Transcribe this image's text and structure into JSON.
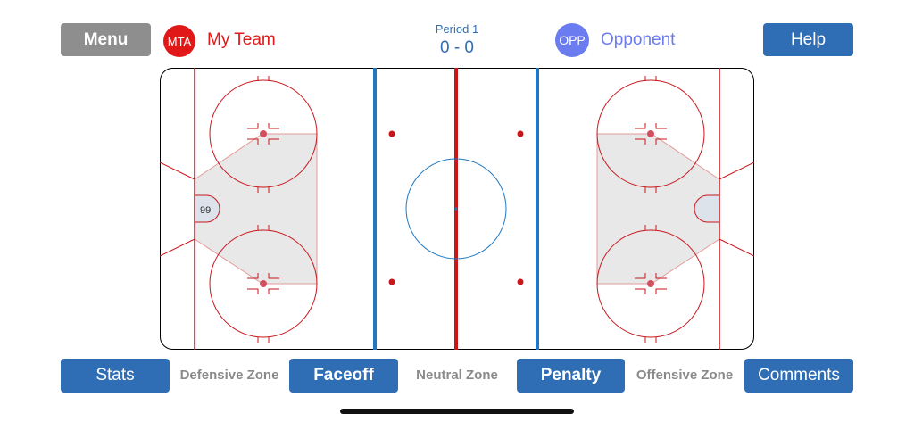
{
  "header": {
    "menu_label": "Menu",
    "help_label": "Help",
    "home_team": {
      "abbr": "MTA",
      "name": "My Team",
      "color": "#e01818"
    },
    "away_team": {
      "abbr": "OPP",
      "name": "Opponent",
      "color": "#6a7cf0"
    },
    "period_label": "Period 1",
    "score": "0 - 0"
  },
  "rink": {
    "goalie_number": "99",
    "colors": {
      "red_line": "#c8161d",
      "blue_line": "#1f78c1",
      "zone_fill": "#e8e8e8"
    }
  },
  "footer": {
    "stats_label": "Stats",
    "defensive_zone_label": "Defensive Zone",
    "faceoff_label": "Faceoff",
    "neutral_zone_label": "Neutral Zone",
    "penalty_label": "Penalty",
    "offensive_zone_label": "Offensive Zone",
    "comments_label": "Comments"
  }
}
